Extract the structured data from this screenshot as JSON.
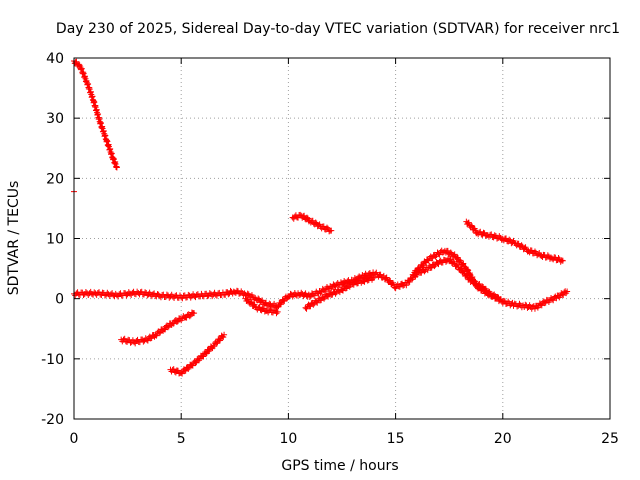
{
  "chart_data": {
    "type": "scatter",
    "title": "Day 230 of 2025, Sidereal Day-to-day VTEC variation (SDTVAR) for receiver nrc1",
    "xlabel": "GPS time / hours",
    "ylabel": "SDTVAR / TECUs",
    "xlim": [
      0,
      25
    ],
    "ylim": [
      -20,
      40
    ],
    "xticks": [
      0,
      5,
      10,
      15,
      20,
      25
    ],
    "yticks": [
      -20,
      -10,
      0,
      10,
      20,
      30,
      40
    ],
    "grid": true,
    "marker": "+",
    "color": "#ff0000",
    "series": [
      {
        "name": "arc-descending-start",
        "x": [
          0.0,
          0.3,
          0.6,
          0.9,
          1.2,
          1.5,
          1.8,
          2.0
        ],
        "y": [
          39.5,
          38.5,
          36.0,
          33.0,
          29.5,
          26.5,
          23.5,
          21.8
        ]
      },
      {
        "name": "isolated-point",
        "x": [
          0.0
        ],
        "y": [
          17.8
        ]
      },
      {
        "name": "baseline-main",
        "x": [
          0.0,
          1.0,
          2.0,
          3.0,
          4.0,
          5.0,
          6.0,
          7.0,
          7.5,
          8.0,
          8.5,
          9.0,
          9.5,
          10.0,
          10.5,
          11.0,
          11.5,
          12.0,
          12.5,
          13.0,
          13.5,
          14.0,
          14.5,
          15.0,
          15.5,
          16.0,
          16.5,
          17.0,
          17.5,
          18.0,
          18.5,
          19.0,
          19.5,
          20.0,
          20.5,
          21.0,
          21.5,
          22.0,
          22.5,
          23.0
        ],
        "y": [
          0.8,
          0.9,
          0.6,
          1.0,
          0.5,
          0.3,
          0.6,
          0.8,
          1.2,
          0.8,
          0.0,
          -1.0,
          -1.2,
          0.5,
          0.8,
          0.5,
          1.2,
          2.0,
          2.6,
          3.0,
          3.8,
          4.2,
          3.5,
          2.0,
          2.5,
          4.2,
          5.0,
          6.0,
          6.5,
          5.0,
          3.0,
          2.0,
          0.5,
          -0.5,
          -1.0,
          -1.2,
          -1.5,
          -0.5,
          0.2,
          1.2
        ]
      },
      {
        "name": "dip-around-9h",
        "x": [
          8.0,
          8.5,
          9.0,
          9.5
        ],
        "y": [
          0.0,
          -1.5,
          -2.0,
          -2.2
        ]
      },
      {
        "name": "arc-rising-11h",
        "x": [
          10.8,
          11.3,
          11.8,
          12.5,
          13.0,
          13.5,
          14.0
        ],
        "y": [
          -1.5,
          -0.5,
          0.5,
          1.5,
          2.5,
          3.0,
          3.5
        ]
      },
      {
        "name": "hump-17h",
        "x": [
          15.8,
          16.5,
          17.0,
          17.3,
          17.8,
          18.3,
          18.8,
          19.3,
          19.8
        ],
        "y": [
          4.0,
          6.5,
          7.5,
          8.0,
          7.0,
          5.0,
          2.0,
          0.8,
          0.2
        ]
      },
      {
        "name": "arc-10h",
        "x": [
          10.2,
          10.6,
          11.0,
          11.5,
          12.0
        ],
        "y": [
          13.5,
          13.8,
          13.0,
          12.0,
          11.3
        ]
      },
      {
        "name": "arc-18h",
        "x": [
          18.3,
          18.8,
          19.3,
          20.0,
          20.6,
          21.2,
          21.8,
          22.3,
          22.8
        ],
        "y": [
          12.8,
          11.0,
          10.6,
          10.0,
          9.2,
          8.0,
          7.2,
          6.8,
          6.3
        ]
      },
      {
        "name": "arc-2h-negative",
        "x": [
          2.2,
          2.8,
          3.4,
          3.8,
          4.2,
          4.6,
          5.2,
          5.6
        ],
        "y": [
          -6.8,
          -7.2,
          -6.8,
          -6.0,
          -5.0,
          -4.0,
          -3.0,
          -2.4
        ]
      },
      {
        "name": "arc-5h-negative",
        "x": [
          4.5,
          5.0,
          5.5,
          6.0,
          6.5,
          7.0
        ],
        "y": [
          -11.8,
          -12.3,
          -11.0,
          -9.5,
          -7.8,
          -6.0
        ]
      }
    ]
  }
}
